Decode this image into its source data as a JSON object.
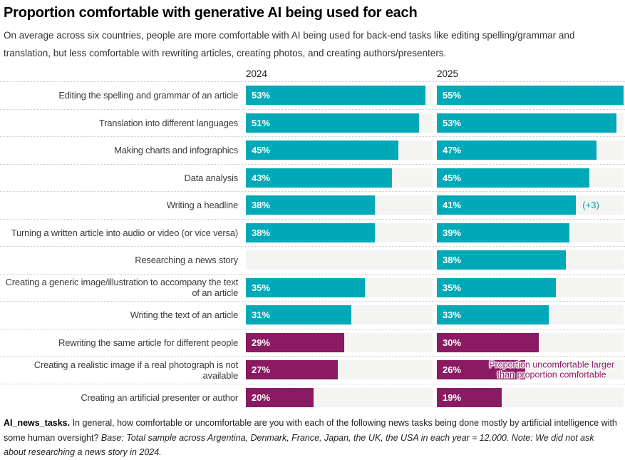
{
  "header": {
    "title": "Proportion comfortable with generative AI being used for each",
    "subtitle": "On average across six countries, people are more comfortable with AI being used for back-end tasks like editing spelling/grammar and translation, but less comfortable with rewriting articles, creating photos, and creating authors/presenters."
  },
  "chart_data": {
    "type": "bar",
    "orientation": "horizontal",
    "value_format": "percent",
    "scale_max": 55,
    "grid": false,
    "columns": [
      "2024",
      "2025"
    ],
    "categories": [
      "Editing the spelling and grammar of an article",
      "Translation into different languages",
      "Making charts and infographics",
      "Data analysis",
      "Writing a headline",
      "Turning a written article into audio or video (or vice versa)",
      "Researching a news story",
      "Creating a generic image/illustration to accompany the text of an article",
      "Writing the text of an article",
      "Rewriting the same article for different people",
      "Creating a realistic image if a real photograph is not available",
      "Creating an artificial presenter or author"
    ],
    "series": [
      {
        "name": "2024",
        "values": [
          53,
          51,
          45,
          43,
          38,
          38,
          null,
          35,
          31,
          29,
          27,
          20
        ]
      },
      {
        "name": "2025",
        "values": [
          55,
          53,
          47,
          45,
          41,
          39,
          38,
          35,
          33,
          30,
          26,
          19
        ]
      }
    ],
    "sentiments": [
      "comfortable",
      "comfortable",
      "comfortable",
      "comfortable",
      "comfortable",
      "comfortable",
      "comfortable",
      "comfortable",
      "comfortable",
      "uncomfortable",
      "uncomfortable",
      "uncomfortable"
    ],
    "colors": {
      "comfortable": "#00a9b7",
      "uncomfortable": "#8a1a62",
      "track": "#f4f4f3"
    },
    "delta_annotation": {
      "category_index": 4,
      "series": "2025",
      "text": "(+3)"
    },
    "callout": {
      "category_index": 10,
      "series": "2025",
      "line1": "Proportion uncomfortable larger",
      "line2": "than proportion comfortable"
    }
  },
  "footer": {
    "question_id": "AI_news_tasks.",
    "question_text": " In general, how comfortable or uncomfortable are you with each of the following news tasks being done mostly by artificial intelligence with some human oversight? ",
    "base_note": "Base: Total sample across Argentina, Denmark, France, Japan, the UK, the USA in each year ≈ 12,000. Note: We did not ask about researching a news story in 2024."
  }
}
